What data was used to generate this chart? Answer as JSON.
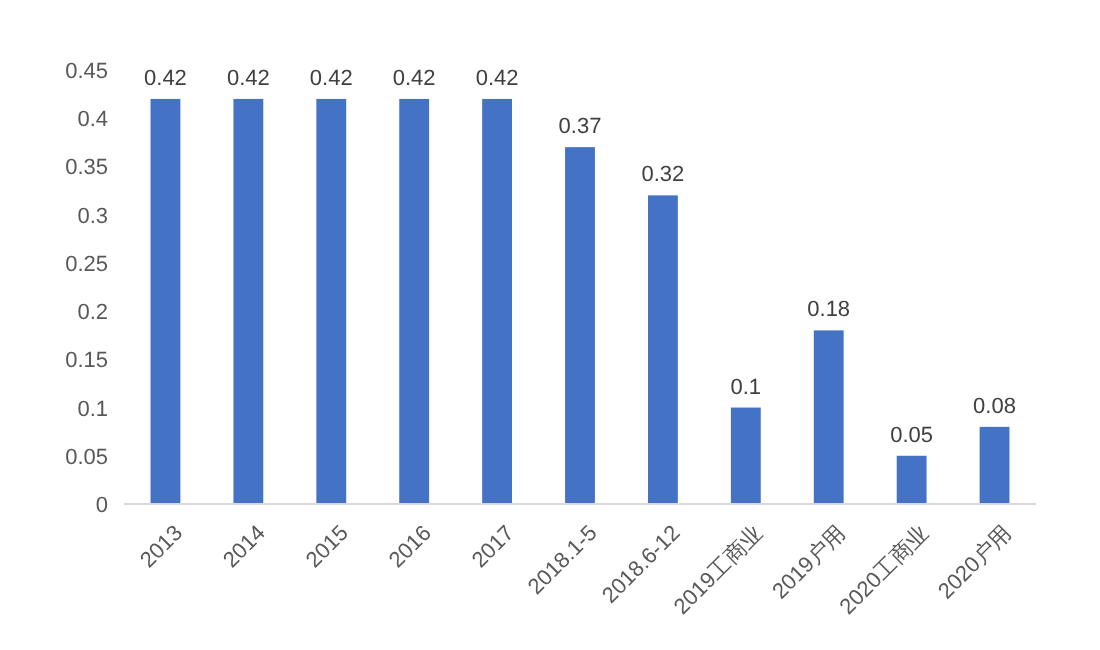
{
  "chart_data": {
    "type": "bar",
    "categories": [
      "2013",
      "2014",
      "2015",
      "2016",
      "2017",
      "2018.1-5",
      "2018.6-12",
      "2019工商业",
      "2019户用",
      "2020工商业",
      "2020户用"
    ],
    "values": [
      0.42,
      0.42,
      0.42,
      0.42,
      0.42,
      0.37,
      0.32,
      0.1,
      0.18,
      0.05,
      0.08
    ],
    "color": "#4472c4",
    "ylim": [
      0,
      0.45
    ],
    "yticks": [
      0,
      0.05,
      0.1,
      0.15,
      0.2,
      0.25,
      0.3,
      0.35,
      0.4,
      0.45
    ],
    "data_labels": true
  }
}
